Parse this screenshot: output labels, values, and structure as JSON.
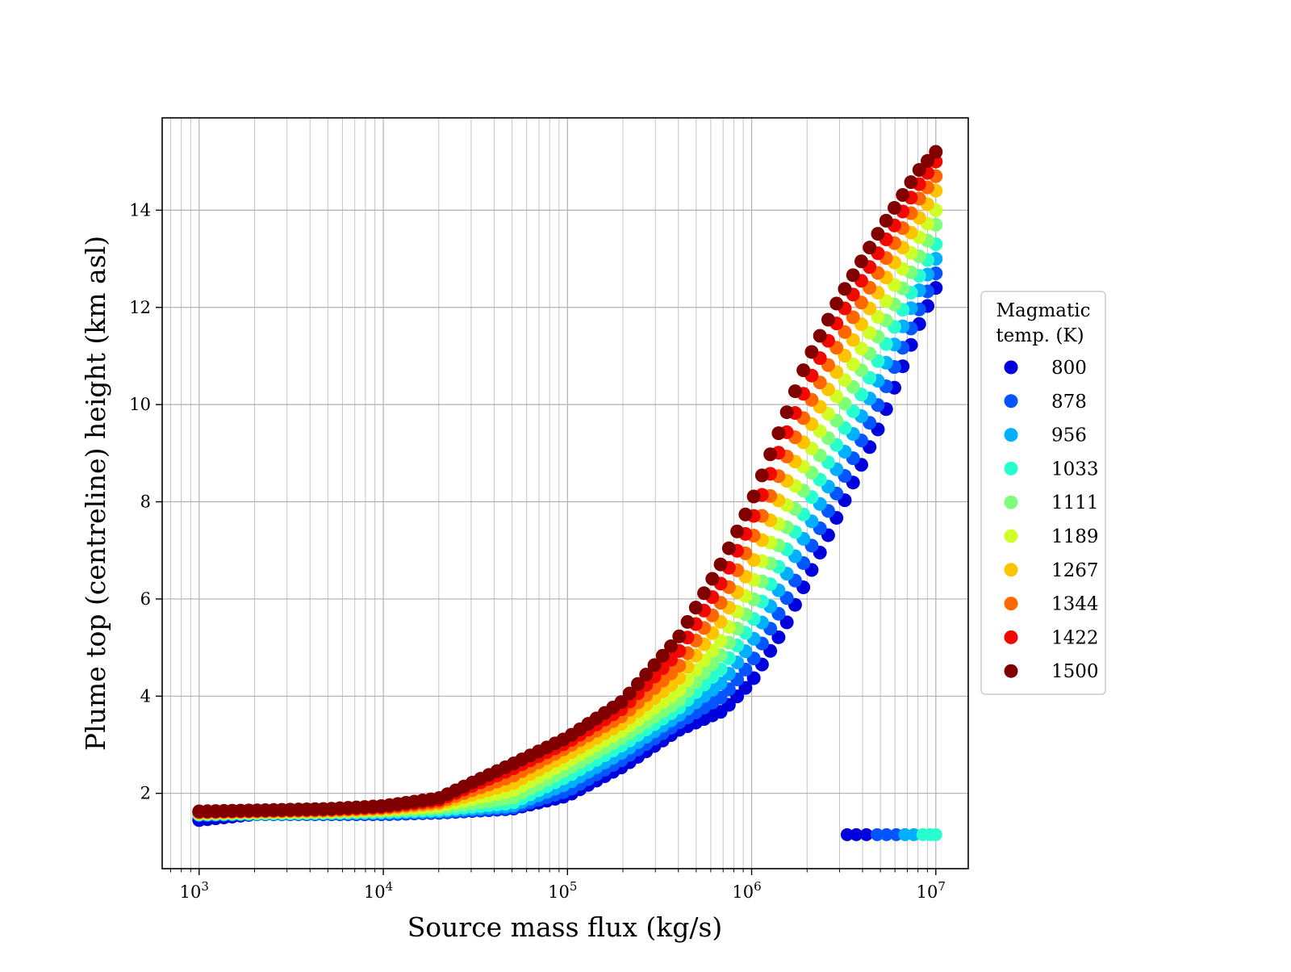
{
  "chart_data": {
    "type": "scatter",
    "xlabel": "Source mass flux (kg/s)",
    "ylabel": "Plume top (centreline) height (km asl)",
    "x_scale": "log",
    "xlim": [
      630,
      15000000
    ],
    "ylim": [
      0.45,
      15.9
    ],
    "x_major_ticks": [
      1000,
      10000,
      100000,
      1000000,
      10000000
    ],
    "x_tick_labels": [
      {
        "base": "10",
        "exp": "3"
      },
      {
        "base": "10",
        "exp": "4"
      },
      {
        "base": "10",
        "exp": "5"
      },
      {
        "base": "10",
        "exp": "6"
      },
      {
        "base": "10",
        "exp": "7"
      }
    ],
    "y_ticks": [
      2,
      4,
      6,
      8,
      10,
      12,
      14
    ],
    "y_tick_labels": [
      "2",
      "4",
      "6",
      "8",
      "10",
      "12",
      "14"
    ],
    "grid": true,
    "legend": {
      "title_lines": [
        "Magmatic",
        "temp. (K)"
      ],
      "placement": "right, outside plot area",
      "entries": [
        {
          "label": "800",
          "color": "#0000dd"
        },
        {
          "label": "878",
          "color": "#0555ff"
        },
        {
          "label": "956",
          "color": "#00b0ff"
        },
        {
          "label": "1033",
          "color": "#29ffce"
        },
        {
          "label": "1111",
          "color": "#7dff7a"
        },
        {
          "label": "1189",
          "color": "#ceff29"
        },
        {
          "label": "1267",
          "color": "#ffc400"
        },
        {
          "label": "1344",
          "color": "#ff6800"
        },
        {
          "label": "1422",
          "color": "#f10800"
        },
        {
          "label": "1500",
          "color": "#800000"
        }
      ]
    },
    "series": [
      {
        "temperature": 800,
        "x": [
          1000,
          2000,
          5000,
          10000,
          20000,
          50000,
          100000,
          200000,
          400000,
          700000,
          1000000,
          1500000,
          2000000,
          3000000,
          5000000,
          8000000,
          10000000
        ],
        "y": [
          1.45,
          1.57,
          1.57,
          1.57,
          1.6,
          1.68,
          1.95,
          2.55,
          3.3,
          3.7,
          4.3,
          5.4,
          6.4,
          7.8,
          9.6,
          11.6,
          12.4
        ]
      },
      {
        "temperature": 878,
        "x": [
          1000,
          2000,
          5000,
          10000,
          20000,
          50000,
          100000,
          200000,
          400000,
          700000,
          1000000,
          1500000,
          2000000,
          3000000,
          5000000,
          8000000,
          10000000
        ],
        "y": [
          1.55,
          1.57,
          1.58,
          1.58,
          1.61,
          1.7,
          2.05,
          2.7,
          3.45,
          4.0,
          4.7,
          5.9,
          6.9,
          8.3,
          10.1,
          11.9,
          12.7
        ]
      },
      {
        "temperature": 956,
        "x": [
          1000,
          2000,
          5000,
          10000,
          20000,
          50000,
          100000,
          200000,
          400000,
          700000,
          1000000,
          1500000,
          2000000,
          3000000,
          5000000,
          8000000,
          10000000
        ],
        "y": [
          1.56,
          1.58,
          1.59,
          1.6,
          1.63,
          1.74,
          2.2,
          2.85,
          3.6,
          4.3,
          5.1,
          6.4,
          7.4,
          8.8,
          10.6,
          12.3,
          13.0
        ]
      },
      {
        "temperature": 1033,
        "x": [
          1000,
          2000,
          5000,
          10000,
          20000,
          50000,
          100000,
          200000,
          400000,
          700000,
          1000000,
          1500000,
          2000000,
          3000000,
          5000000,
          8000000,
          10000000
        ],
        "y": [
          1.57,
          1.59,
          1.6,
          1.62,
          1.66,
          1.8,
          2.35,
          3.0,
          3.75,
          4.6,
          5.5,
          6.9,
          7.9,
          9.3,
          11.0,
          12.6,
          13.3
        ]
      },
      {
        "temperature": 1111,
        "x": [
          1000,
          2000,
          5000,
          10000,
          20000,
          50000,
          100000,
          200000,
          400000,
          700000,
          1000000,
          1500000,
          2000000,
          3000000,
          5000000,
          8000000,
          10000000
        ],
        "y": [
          1.58,
          1.6,
          1.61,
          1.64,
          1.7,
          1.9,
          2.5,
          3.15,
          3.9,
          4.9,
          5.9,
          7.35,
          8.4,
          9.8,
          11.5,
          13.0,
          13.7
        ]
      },
      {
        "temperature": 1189,
        "x": [
          1000,
          2000,
          5000,
          10000,
          20000,
          50000,
          100000,
          200000,
          400000,
          700000,
          1000000,
          1500000,
          2000000,
          3000000,
          5000000,
          8000000,
          10000000
        ],
        "y": [
          1.59,
          1.61,
          1.63,
          1.66,
          1.74,
          2.05,
          2.65,
          3.3,
          4.1,
          5.2,
          6.3,
          7.8,
          8.9,
          10.3,
          11.9,
          13.4,
          14.0
        ]
      },
      {
        "temperature": 1267,
        "x": [
          1000,
          2000,
          5000,
          10000,
          20000,
          50000,
          100000,
          200000,
          400000,
          700000,
          1000000,
          1500000,
          2000000,
          3000000,
          5000000,
          8000000,
          10000000
        ],
        "y": [
          1.6,
          1.62,
          1.64,
          1.68,
          1.78,
          2.2,
          2.8,
          3.45,
          4.35,
          5.6,
          6.7,
          8.3,
          9.4,
          10.8,
          12.4,
          13.8,
          14.4
        ]
      },
      {
        "temperature": 1344,
        "x": [
          1000,
          2000,
          5000,
          10000,
          20000,
          50000,
          100000,
          200000,
          400000,
          700000,
          1000000,
          1500000,
          2000000,
          3000000,
          5000000,
          8000000,
          10000000
        ],
        "y": [
          1.61,
          1.63,
          1.65,
          1.7,
          1.82,
          2.35,
          2.95,
          3.6,
          4.6,
          6.0,
          7.2,
          8.8,
          9.9,
          11.3,
          12.8,
          14.2,
          14.7
        ]
      },
      {
        "temperature": 1422,
        "x": [
          1000,
          2000,
          5000,
          10000,
          20000,
          50000,
          100000,
          200000,
          400000,
          700000,
          1000000,
          1500000,
          2000000,
          3000000,
          5000000,
          8000000,
          10000000
        ],
        "y": [
          1.62,
          1.64,
          1.67,
          1.72,
          1.86,
          2.5,
          3.05,
          3.75,
          4.9,
          6.4,
          7.6,
          9.3,
          10.4,
          11.8,
          13.2,
          14.5,
          15.0
        ]
      },
      {
        "temperature": 1500,
        "x": [
          1000,
          2000,
          5000,
          10000,
          20000,
          50000,
          100000,
          200000,
          400000,
          700000,
          1000000,
          1500000,
          2000000,
          3000000,
          5000000,
          8000000,
          10000000
        ],
        "y": [
          1.63,
          1.65,
          1.68,
          1.74,
          1.9,
          2.6,
          3.15,
          3.9,
          5.2,
          6.8,
          8.0,
          9.7,
          10.9,
          12.2,
          13.6,
          14.8,
          15.2
        ]
      }
    ],
    "outlier_points": [
      {
        "x": 3300000,
        "y": 1.15,
        "temperature": 800
      },
      {
        "x": 3700000,
        "y": 1.15,
        "temperature": 800
      },
      {
        "x": 4200000,
        "y": 1.15,
        "temperature": 800
      },
      {
        "x": 4800000,
        "y": 1.15,
        "temperature": 878
      },
      {
        "x": 5400000,
        "y": 1.15,
        "temperature": 878
      },
      {
        "x": 6100000,
        "y": 1.15,
        "temperature": 878
      },
      {
        "x": 6800000,
        "y": 1.15,
        "temperature": 956
      },
      {
        "x": 7600000,
        "y": 1.15,
        "temperature": 956
      },
      {
        "x": 8500000,
        "y": 1.15,
        "temperature": 1033
      },
      {
        "x": 9300000,
        "y": 1.15,
        "temperature": 1033
      },
      {
        "x": 10000000,
        "y": 1.15,
        "temperature": 1033
      }
    ]
  }
}
